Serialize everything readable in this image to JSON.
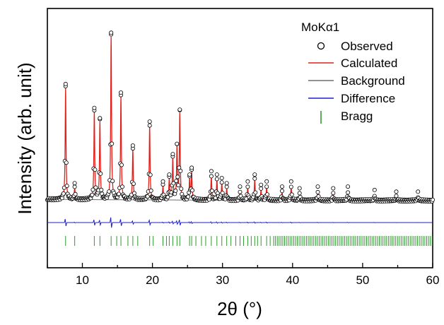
{
  "chart_data": {
    "type": "line",
    "title": "",
    "xlabel": "2θ (°)",
    "ylabel": "Intensity (arb. unit)",
    "xlim": [
      5,
      60
    ],
    "ylim": [
      0,
      1
    ],
    "x_ticks": [
      10,
      20,
      30,
      40,
      50,
      60
    ],
    "x_tick_labels": [
      "10",
      "20",
      "30",
      "40",
      "50",
      "60"
    ],
    "y_ticks_labeled": false,
    "grid": false,
    "legend": {
      "title": "MoKα1",
      "position": "top-right",
      "entries": [
        "Observed",
        "Calculated",
        "Background",
        "Difference",
        "Bragg"
      ]
    },
    "colors": {
      "observed": "#000000",
      "calculated": "#e0201b",
      "background": "#6e6e6e",
      "difference": "#1f1fcc",
      "bragg": "#2f9a2f"
    },
    "baseline": 0.02,
    "peaks": [
      {
        "x": 7.6,
        "y": 0.65
      },
      {
        "x": 8.9,
        "y": 0.07
      },
      {
        "x": 11.7,
        "y": 0.51
      },
      {
        "x": 12.5,
        "y": 0.45
      },
      {
        "x": 14.1,
        "y": 0.95
      },
      {
        "x": 15.5,
        "y": 0.6
      },
      {
        "x": 17.2,
        "y": 0.29
      },
      {
        "x": 19.6,
        "y": 0.43
      },
      {
        "x": 21.5,
        "y": 0.08
      },
      {
        "x": 22.4,
        "y": 0.12
      },
      {
        "x": 22.9,
        "y": 0.24
      },
      {
        "x": 23.5,
        "y": 0.3
      },
      {
        "x": 23.9,
        "y": 0.5
      },
      {
        "x": 25.3,
        "y": 0.12
      },
      {
        "x": 25.6,
        "y": 0.16
      },
      {
        "x": 28.4,
        "y": 0.14
      },
      {
        "x": 29.2,
        "y": 0.12
      },
      {
        "x": 29.9,
        "y": 0.1
      },
      {
        "x": 30.6,
        "y": 0.07
      },
      {
        "x": 32.5,
        "y": 0.05
      },
      {
        "x": 33.6,
        "y": 0.08
      },
      {
        "x": 34.6,
        "y": 0.12
      },
      {
        "x": 35.5,
        "y": 0.06
      },
      {
        "x": 36.3,
        "y": 0.08
      },
      {
        "x": 38.5,
        "y": 0.05
      },
      {
        "x": 39.8,
        "y": 0.08
      },
      {
        "x": 41.0,
        "y": 0.04
      },
      {
        "x": 43.6,
        "y": 0.05
      },
      {
        "x": 45.8,
        "y": 0.04
      },
      {
        "x": 47.9,
        "y": 0.05
      },
      {
        "x": 51.7,
        "y": 0.03
      },
      {
        "x": 54.8,
        "y": 0.02
      },
      {
        "x": 57.9,
        "y": 0.02
      }
    ],
    "bragg_positions": [
      7.6,
      8.9,
      11.7,
      12.5,
      14.1,
      14.9,
      15.5,
      16.5,
      17.2,
      17.9,
      19.6,
      20.1,
      21.5,
      22.0,
      22.4,
      22.9,
      23.5,
      23.9,
      25.3,
      25.6,
      26.2,
      27.0,
      27.6,
      28.4,
      29.2,
      29.9,
      30.6,
      31.2,
      31.9,
      32.5,
      33.0,
      33.6,
      34.1,
      34.6,
      35.0,
      35.5,
      36.3,
      36.8
    ]
  }
}
